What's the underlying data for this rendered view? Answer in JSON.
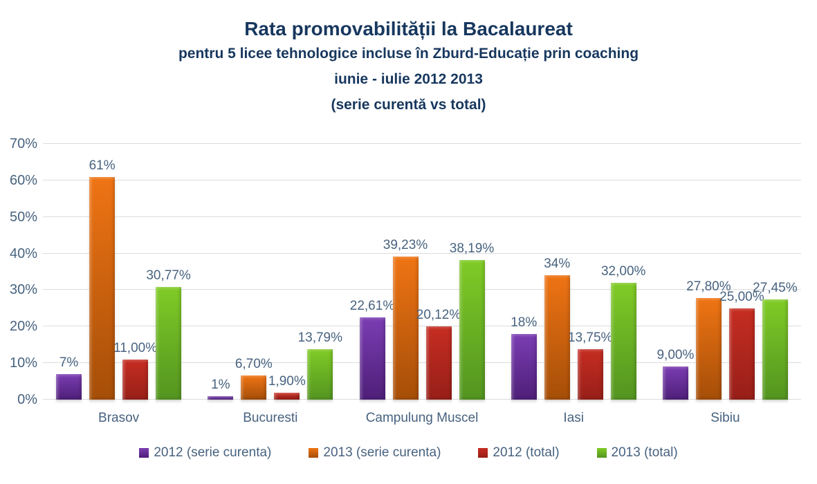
{
  "chart_data": {
    "type": "bar",
    "title": "Rata promovabilității  la Bacalaureat",
    "subtitle1": "pentru 5 licee tehnologice incluse în Zburd-Educație prin coaching",
    "subtitle2": "iunie - iulie 2012 2013",
    "subtitle3": "(serie curentă vs total)",
    "categories": [
      "Brasov",
      "Bucuresti",
      "Campulung Muscel",
      "Iasi",
      "Sibiu"
    ],
    "series": [
      {
        "name": "2012 (serie curenta)",
        "color_top": "#7B3DB3",
        "color_bottom": "#4E1F78",
        "values": [
          7,
          1,
          22.61,
          18,
          9
        ],
        "labels": [
          "7%",
          "1%",
          "22,61%",
          "18%",
          "9,00%"
        ]
      },
      {
        "name": "2013 (serie curenta)",
        "color_top": "#EF7414",
        "color_bottom": "#A54E08",
        "values": [
          61,
          6.7,
          39.23,
          34,
          27.8
        ],
        "labels": [
          "61%",
          "6,70%",
          "39,23%",
          "34%",
          "27,80%"
        ]
      },
      {
        "name": "2012 (total)",
        "color_top": "#C62D22",
        "color_bottom": "#971F18",
        "values": [
          11,
          1.9,
          20.12,
          13.75,
          25
        ],
        "labels": [
          "11,00%",
          "1,90%",
          "20,12%",
          "13,75%",
          "25,00%"
        ]
      },
      {
        "name": "2013 (total)",
        "color_top": "#80CB26",
        "color_bottom": "#539420",
        "values": [
          30.77,
          13.79,
          38.19,
          32,
          27.45
        ],
        "labels": [
          "30,77%",
          "13,79%",
          "38,19%",
          "32,00%",
          "27,45%"
        ]
      }
    ],
    "y_axis": {
      "min": 0,
      "max": 70,
      "step": 10,
      "tick_labels": [
        "0%",
        "10%",
        "20%",
        "30%",
        "40%",
        "50%",
        "60%",
        "70%"
      ]
    },
    "grid": true,
    "legend_position": "bottom"
  },
  "colors": {
    "title_text": "#17375E",
    "axis_text": "#47627F",
    "gridline": "#DCDCDC",
    "background": "#FFFFFF"
  }
}
